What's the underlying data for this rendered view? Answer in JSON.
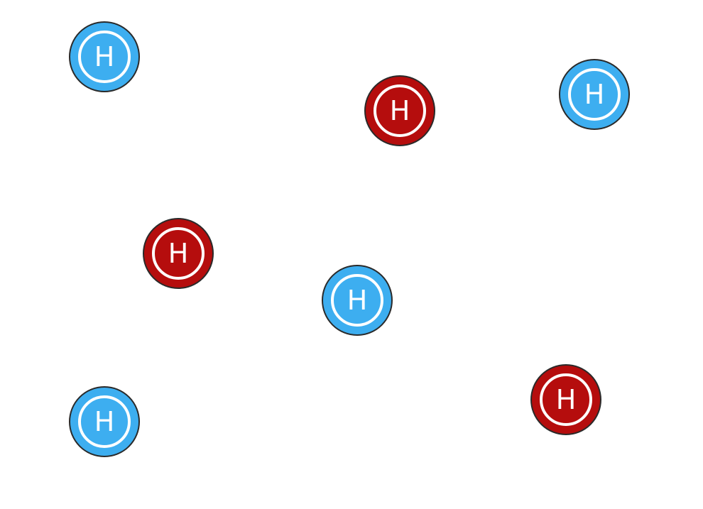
{
  "colors": {
    "blue": "#3daef0",
    "red": "#b50d0d",
    "ring": "#ffffff",
    "outline": "#2a2a2a"
  },
  "markers": [
    {
      "label": "H",
      "color": "blue"
    },
    {
      "label": "H",
      "color": "red"
    },
    {
      "label": "H",
      "color": "blue"
    },
    {
      "label": "H",
      "color": "red"
    },
    {
      "label": "H",
      "color": "blue"
    },
    {
      "label": "H",
      "color": "blue"
    },
    {
      "label": "H",
      "color": "red"
    }
  ]
}
